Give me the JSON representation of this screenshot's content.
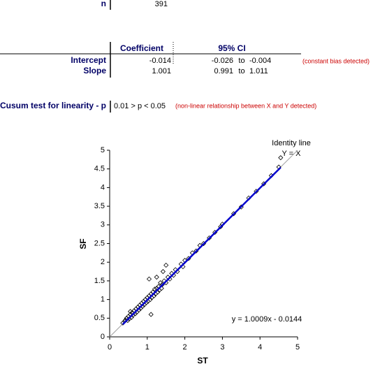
{
  "summary": {
    "n_label": "n",
    "n": 391
  },
  "table": {
    "headers": [
      "Coefficient",
      "95% CI"
    ],
    "rows": [
      {
        "label": "Intercept",
        "coefficient": -0.014,
        "ci_low": -0.026,
        "to": "to",
        "ci_high": -0.004,
        "note": "(constant bias detected)"
      },
      {
        "label": "Slope",
        "coefficient": 1.001,
        "ci_low": 0.991,
        "to": "to",
        "ci_high": 1.011
      }
    ]
  },
  "cusum": {
    "label": "Cusum test for linearity - p",
    "result": "0.01 > p < 0.05",
    "note": "(non-linear relationship between X and Y detected)"
  },
  "chart_data": {
    "type": "scatter",
    "x_label": "ST",
    "y_label": "SF",
    "color": "#000000",
    "x": [
      0.35,
      0.4,
      0.42,
      0.45,
      0.48,
      0.5,
      0.52,
      0.55,
      0.55,
      0.58,
      0.6,
      0.62,
      0.65,
      0.68,
      0.7,
      0.72,
      0.75,
      0.78,
      0.8,
      0.82,
      0.85,
      0.88,
      0.9,
      0.92,
      0.95,
      0.98,
      1.0,
      1.02,
      1.05,
      1.08,
      1.1,
      1.1,
      1.05,
      1.12,
      1.15,
      1.18,
      1.2,
      1.22,
      1.25,
      1.25,
      1.28,
      1.3,
      1.32,
      1.35,
      1.38,
      1.4,
      1.42,
      1.45,
      1.5,
      1.5,
      1.55,
      1.6,
      1.65,
      1.7,
      1.75,
      1.8,
      1.9,
      1.95,
      2.0,
      2.1,
      2.2,
      2.3,
      2.4,
      2.5,
      2.65,
      2.8,
      2.95,
      3.0,
      3.3,
      3.5,
      3.7,
      3.9,
      4.1,
      4.3,
      4.5,
      4.55
    ],
    "values": [
      0.37,
      0.42,
      0.45,
      0.5,
      0.44,
      0.55,
      0.48,
      0.6,
      0.68,
      0.52,
      0.65,
      0.58,
      0.7,
      0.62,
      0.75,
      0.66,
      0.8,
      0.72,
      0.85,
      0.76,
      0.9,
      0.82,
      0.95,
      0.86,
      1.0,
      0.92,
      1.05,
      0.95,
      1.1,
      1.0,
      0.6,
      1.15,
      1.55,
      1.05,
      1.2,
      1.1,
      1.28,
      1.15,
      1.6,
      1.3,
      1.2,
      1.35,
      1.25,
      1.45,
      1.3,
      1.4,
      1.75,
      1.5,
      1.92,
      1.45,
      1.6,
      1.55,
      1.7,
      1.65,
      1.8,
      1.75,
      1.95,
      1.88,
      2.05,
      2.1,
      2.25,
      2.3,
      2.45,
      2.5,
      2.65,
      2.8,
      2.95,
      3.02,
      3.3,
      3.48,
      3.72,
      3.9,
      4.1,
      4.32,
      4.55,
      4.8
    ],
    "xlim": [
      0,
      5
    ],
    "ylim": [
      0,
      5
    ],
    "xticks": [
      0,
      1,
      2,
      3,
      4,
      5
    ],
    "yticks": [
      0,
      0.5,
      1,
      1.5,
      2,
      2.5,
      3,
      3.5,
      4,
      4.5,
      5
    ],
    "trendline": {
      "label": "y = 1.0009x - 0.0144",
      "slope": 1.0009,
      "intercept": -0.0144,
      "xrange": [
        0.35,
        4.55
      ],
      "color": "#0000cc"
    },
    "identity_line": {
      "label": "Identity line",
      "equation": "Y = X",
      "color": "#a0a0a0"
    }
  }
}
